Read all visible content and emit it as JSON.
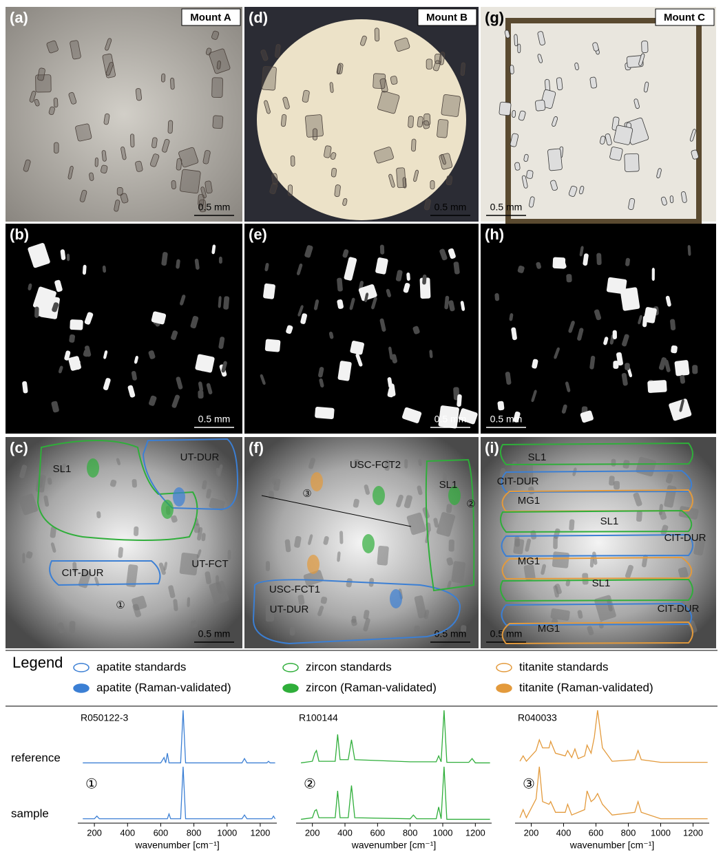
{
  "panels": [
    {
      "letter": "(a)",
      "label": "Mount A",
      "scale": "0.5 mm"
    },
    {
      "letter": "(b)",
      "scale": "0.5 mm"
    },
    {
      "letter": "(c)",
      "scale": "0.5 mm"
    },
    {
      "letter": "(d)",
      "label": "Mount B",
      "scale": "0.5 mm"
    },
    {
      "letter": "(e)",
      "scale": "0.5 mm"
    },
    {
      "letter": "(f)",
      "scale": "0.5 mm"
    },
    {
      "letter": "(g)",
      "label": "Mount C",
      "scale": "0.5 mm"
    },
    {
      "letter": "(h)",
      "scale": "0.5 mm"
    },
    {
      "letter": "(i)",
      "scale": "0.5 mm"
    }
  ],
  "annotations": {
    "c": [
      "SL1",
      "UT-DUR",
      "CIT-DUR",
      "UT-FCT",
      "①"
    ],
    "f": [
      "USC-FCT2",
      "③",
      "②",
      "SL1",
      "USC-FCT1",
      "UT-DUR"
    ],
    "i": [
      "SL1",
      "CIT-DUR",
      "MG1",
      "SL1",
      "CIT-DUR",
      "MG1",
      "SL1",
      "CIT-DUR",
      "MG1"
    ]
  },
  "legend": {
    "title": "Legend",
    "items": [
      {
        "text": "apatite standards",
        "color": "#3b7fd4",
        "style": "outline"
      },
      {
        "text": "zircon standards",
        "color": "#2fae3a",
        "style": "outline"
      },
      {
        "text": "titanite standards",
        "color": "#e39a3c",
        "style": "outline"
      },
      {
        "text": "apatite (Raman-validated)",
        "color": "#3b7fd4",
        "style": "filled"
      },
      {
        "text": "zircon (Raman-validated)",
        "color": "#2fae3a",
        "style": "filled"
      },
      {
        "text": "titanite (Raman-validated)",
        "color": "#e39a3c",
        "style": "filled"
      }
    ]
  },
  "chart_data": {
    "type": "line",
    "row_labels": [
      "reference",
      "sample"
    ],
    "xlabel": "wavenumber [cm⁻¹]",
    "xlim": [
      100,
      1300
    ],
    "xticks": [
      200,
      400,
      600,
      800,
      1000,
      1200
    ],
    "spectra": [
      {
        "name": "R050122-3",
        "marker": "①",
        "color": "#3b7fd4",
        "reference": {
          "x": [
            130,
            600,
            620,
            630,
            640,
            650,
            660,
            720,
            735,
            750,
            1090,
            1105,
            1120,
            1240,
            1250,
            1260,
            1290
          ],
          "values": [
            0.02,
            0.02,
            0.12,
            0.02,
            0.2,
            0.02,
            0.02,
            0.02,
            1,
            0.02,
            0.02,
            0.1,
            0.02,
            0.02,
            0.05,
            0.02,
            0.02
          ]
        },
        "sample": {
          "x": [
            130,
            200,
            215,
            230,
            600,
            640,
            650,
            660,
            720,
            735,
            750,
            1090,
            1105,
            1120,
            1270,
            1280,
            1290
          ],
          "values": [
            0.03,
            0.03,
            0.08,
            0.03,
            0.03,
            0.03,
            0.12,
            0.03,
            0.03,
            1,
            0.03,
            0.03,
            0.1,
            0.03,
            0.03,
            0.08,
            0.03
          ]
        }
      },
      {
        "name": "R100144",
        "marker": "②",
        "color": "#2fae3a",
        "reference": {
          "x": [
            130,
            200,
            215,
            225,
            240,
            340,
            355,
            370,
            420,
            440,
            460,
            800,
            960,
            975,
            990,
            1008,
            1025,
            1160,
            1180,
            1200,
            1290
          ],
          "values": [
            0.02,
            0.05,
            0.2,
            0.25,
            0.05,
            0.05,
            0.55,
            0.08,
            0.08,
            0.45,
            0.08,
            0.04,
            0.04,
            0.15,
            0.04,
            1,
            0.03,
            0.03,
            0.1,
            0.02,
            0.02
          ]
        },
        "sample": {
          "x": [
            130,
            200,
            215,
            225,
            240,
            340,
            355,
            370,
            420,
            440,
            460,
            800,
            820,
            840,
            960,
            975,
            990,
            1008,
            1025,
            1290
          ],
          "values": [
            0.02,
            0.05,
            0.18,
            0.2,
            0.05,
            0.05,
            0.55,
            0.05,
            0.05,
            0.65,
            0.05,
            0.03,
            0.1,
            0.03,
            0.03,
            0.25,
            0.03,
            1,
            0.02,
            0.02
          ]
        }
      },
      {
        "name": "R040033",
        "marker": "③",
        "color": "#e39a3c",
        "reference": {
          "x": [
            130,
            150,
            170,
            230,
            250,
            270,
            310,
            320,
            350,
            410,
            425,
            450,
            470,
            490,
            530,
            545,
            570,
            590,
            610,
            640,
            700,
            840,
            860,
            880,
            1000,
            1290
          ],
          "values": [
            0.05,
            0.15,
            0.05,
            0.25,
            0.45,
            0.3,
            0.3,
            0.42,
            0.2,
            0.15,
            0.25,
            0.12,
            0.28,
            0.1,
            0.15,
            0.35,
            0.2,
            0.5,
            1,
            0.3,
            0.05,
            0.08,
            0.25,
            0.08,
            0.03,
            0.03
          ]
        },
        "sample": {
          "x": [
            130,
            150,
            170,
            230,
            250,
            270,
            310,
            320,
            350,
            410,
            425,
            450,
            530,
            545,
            570,
            590,
            610,
            640,
            700,
            840,
            860,
            880,
            1000,
            1290
          ],
          "values": [
            0.05,
            0.2,
            0.05,
            0.4,
            1,
            0.35,
            0.3,
            0.35,
            0.15,
            0.15,
            0.3,
            0.1,
            0.2,
            0.55,
            0.35,
            0.4,
            0.5,
            0.3,
            0.1,
            0.15,
            0.35,
            0.15,
            0.03,
            0.03
          ]
        }
      }
    ]
  }
}
